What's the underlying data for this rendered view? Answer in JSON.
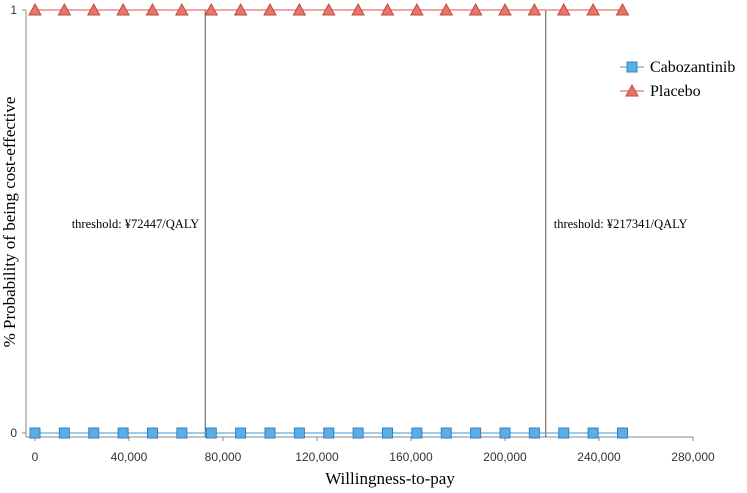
{
  "chart_data": {
    "type": "line",
    "xlabel": "Willingness-to-pay",
    "ylabel": "% Probability of being cost-effective",
    "xlim": [
      0,
      280000
    ],
    "ylim": [
      0,
      1
    ],
    "x_ticks": [
      0,
      40000,
      80000,
      120000,
      160000,
      200000,
      240000,
      280000
    ],
    "x_tick_labels": [
      "0",
      "40,000",
      "80,000",
      "120,000",
      "160,000",
      "200,000",
      "240,000",
      "280,000"
    ],
    "y_ticks": [
      0,
      1
    ],
    "y_tick_labels": [
      "0",
      "1"
    ],
    "x": [
      0,
      12500,
      25000,
      37500,
      50000,
      62500,
      75000,
      87500,
      100000,
      112500,
      125000,
      137500,
      150000,
      162500,
      175000,
      187500,
      200000,
      212500,
      225000,
      237500,
      250000
    ],
    "series": [
      {
        "name": "Cabozantinib",
        "marker": "square",
        "color": "#5aaee8",
        "values": [
          0,
          0,
          0,
          0,
          0,
          0,
          0,
          0,
          0,
          0,
          0,
          0,
          0,
          0,
          0,
          0,
          0,
          0,
          0,
          0,
          0
        ]
      },
      {
        "name": "Placebo",
        "marker": "triangle",
        "color": "#e8756a",
        "values": [
          1,
          1,
          1,
          1,
          1,
          1,
          1,
          1,
          1,
          1,
          1,
          1,
          1,
          1,
          1,
          1,
          1,
          1,
          1,
          1,
          1
        ]
      }
    ],
    "thresholds": [
      {
        "x": 72447,
        "label": "threshold: ¥72447/QALY"
      },
      {
        "x": 217341,
        "label": "threshold: ¥217341/QALY"
      }
    ],
    "legend_position": "top-right",
    "grid": false
  }
}
